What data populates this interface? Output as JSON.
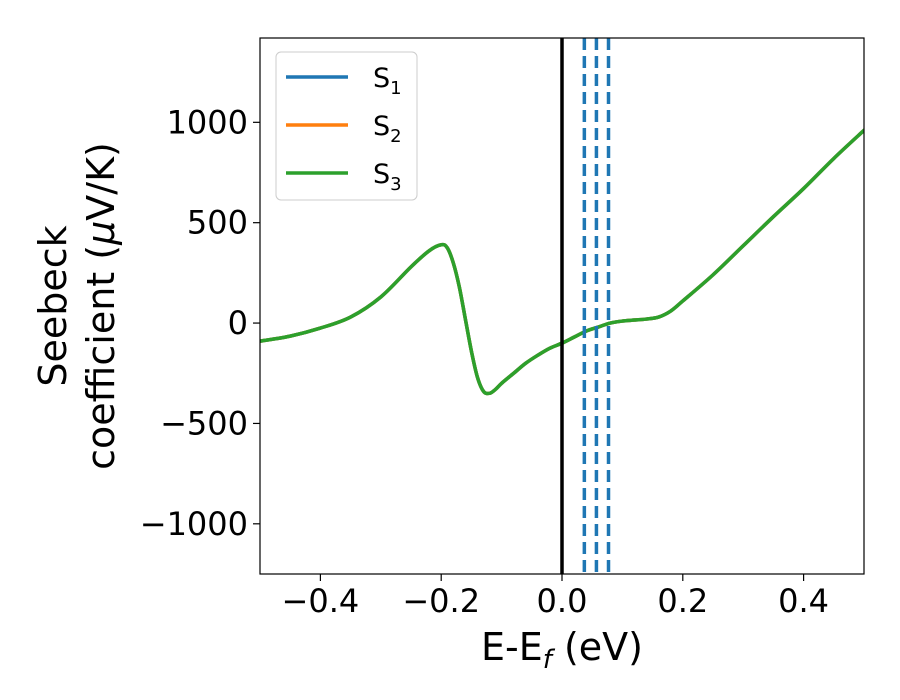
{
  "chart_data": {
    "type": "line",
    "xlabel": "E-E",
    "xlabel_sub": "f",
    "xlabel_unit": " (eV)",
    "ylabel_line1": "Seebeck",
    "ylabel_line2_a": "coefficient  (",
    "ylabel_mu": "μ",
    "ylabel_line2_b": "V/K)",
    "xlim": [
      -0.5,
      0.5
    ],
    "ylim": [
      -1250,
      1420
    ],
    "xticks": [
      -0.4,
      -0.2,
      0.0,
      0.2,
      0.4
    ],
    "xtick_labels": [
      "−0.4",
      "−0.2",
      "0.0",
      "0.2",
      "0.4"
    ],
    "yticks": [
      -1000,
      -500,
      0,
      500,
      1000
    ],
    "ytick_labels": [
      "−1000",
      "−500",
      "0",
      "500",
      "1000"
    ],
    "legend_position": "top-left",
    "series": [
      {
        "name": "S",
        "sub": "1",
        "color": "#1f77b4"
      },
      {
        "name": "S",
        "sub": "2",
        "color": "#ff7f0e"
      },
      {
        "name": "S",
        "sub": "3",
        "color": "#2ca02c"
      }
    ],
    "curve_x": [
      -0.5,
      -0.45,
      -0.4,
      -0.35,
      -0.3,
      -0.25,
      -0.22,
      -0.2,
      -0.19,
      -0.18,
      -0.17,
      -0.16,
      -0.15,
      -0.14,
      -0.13,
      -0.12,
      -0.11,
      -0.1,
      -0.08,
      -0.06,
      -0.04,
      -0.02,
      0.0,
      0.02,
      0.04,
      0.06,
      0.08,
      0.1,
      0.12,
      0.14,
      0.16,
      0.18,
      0.2,
      0.25,
      0.3,
      0.35,
      0.4,
      0.45,
      0.5
    ],
    "curve_y": [
      -90,
      -65,
      -25,
      30,
      130,
      280,
      360,
      390,
      375,
      300,
      180,
      20,
      -140,
      -270,
      -340,
      -350,
      -330,
      -300,
      -250,
      -200,
      -160,
      -125,
      -100,
      -70,
      -40,
      -20,
      0,
      10,
      15,
      20,
      30,
      60,
      110,
      240,
      385,
      530,
      670,
      820,
      960
    ],
    "vline_solid": {
      "x": 0.0,
      "color": "#000000"
    },
    "vlines_dashed": {
      "x": [
        0.037,
        0.057,
        0.077
      ],
      "color": "#1f77b4"
    }
  }
}
